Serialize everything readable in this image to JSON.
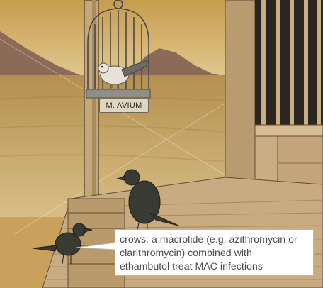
{
  "cage": {
    "plate_label": "M. AVIUM"
  },
  "callout": {
    "lines": [
      "crows: a macrolide (e.g. azithromycin or",
      "clarithromycin) combined with",
      "ethambutol treat MAC infections"
    ]
  },
  "colors": {
    "sky_top": "#c9a050",
    "sky_bottom": "#dfc58e",
    "mountains": "#8a6a55",
    "desert": "#b89558",
    "wood": "#c7ab80",
    "wood_dark": "#8c7352",
    "crow": "#3a3a34"
  }
}
